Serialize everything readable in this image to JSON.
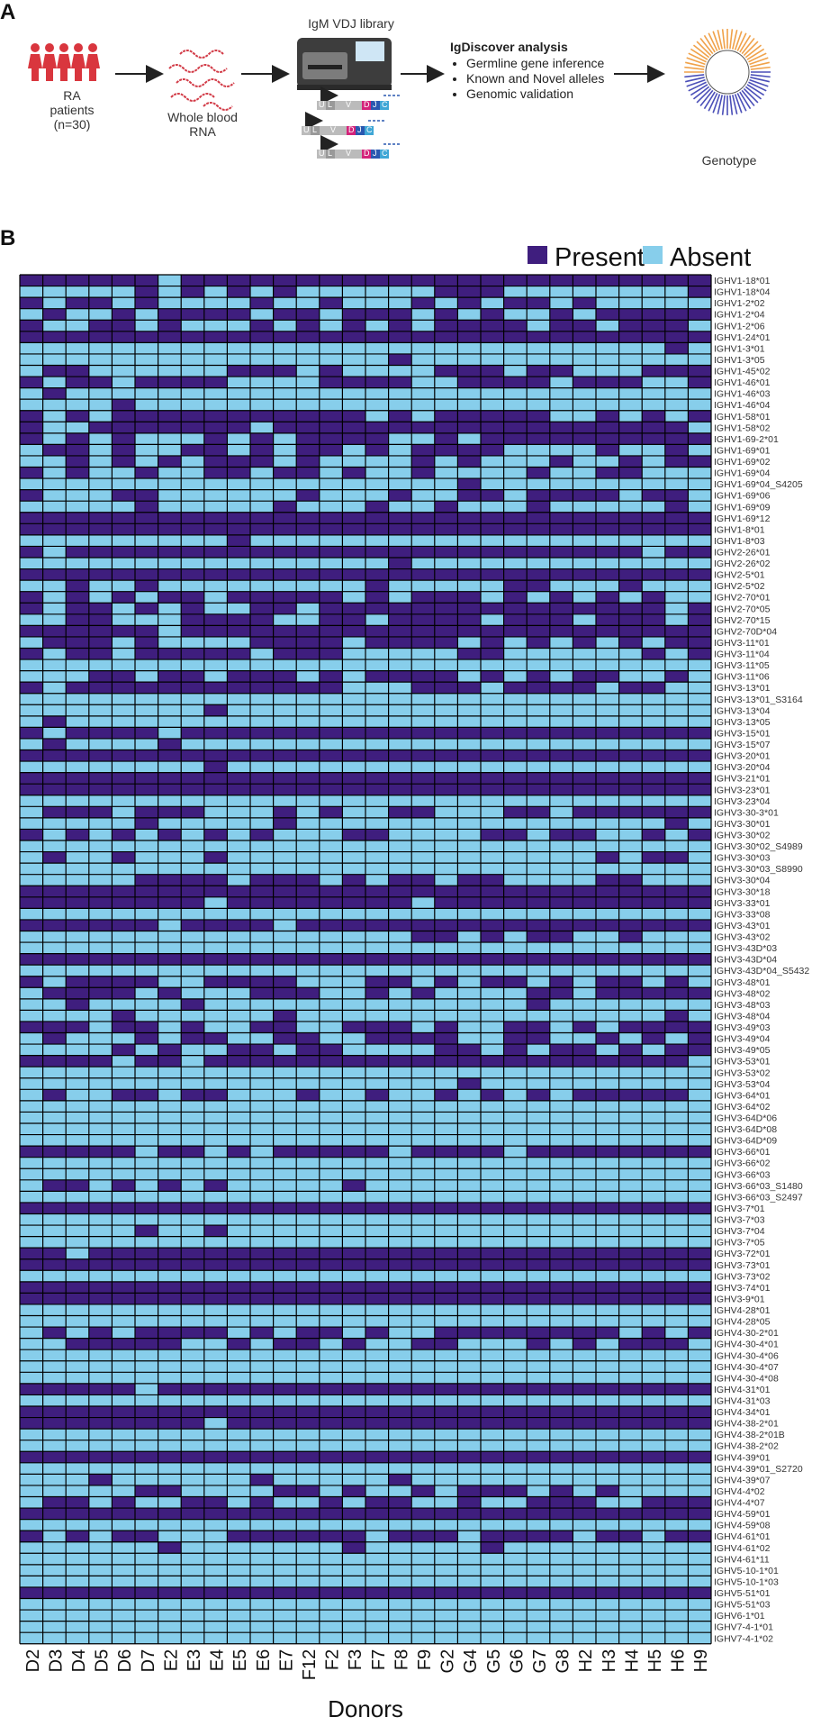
{
  "panel_a": {
    "letter": "A",
    "patients_label": "RA\npatients\n(n=30)",
    "rna_label": "Whole blood\nRNA",
    "library_label": "IgM VDJ library",
    "analysis_title": "IgDiscover analysis",
    "analysis_items": [
      "Germline gene inference",
      "Known and Novel alleles",
      "Genomic validation"
    ],
    "genotype_label": "Genotype",
    "segment_letters": [
      "U",
      "L",
      "V",
      "D",
      "J",
      "C"
    ]
  },
  "panel_b": {
    "letter": "B",
    "legend": [
      {
        "label": "Present",
        "color": "#3f1e7e"
      },
      {
        "label": "Absent",
        "color": "#87ceeb"
      }
    ],
    "x_title": "Donors"
  },
  "chart_data": {
    "type": "heatmap",
    "x_title": "Donors",
    "legend": [
      "Present",
      "Absent"
    ],
    "colors": {
      "present": "#3f1e7e",
      "absent": "#87ceeb"
    },
    "donors": [
      "D2",
      "D3",
      "D4",
      "D5",
      "D6",
      "D7",
      "E2",
      "E3",
      "E4",
      "E5",
      "E6",
      "E7",
      "F12",
      "F2",
      "F3",
      "F7",
      "F8",
      "F9",
      "G2",
      "G4",
      "G5",
      "G6",
      "G7",
      "G8",
      "H2",
      "H3",
      "H4",
      "H5",
      "H6",
      "H9"
    ],
    "alleles": [
      "IGHV1-18*01",
      "IGHV1-18*04",
      "IGHV1-2*02",
      "IGHV1-2*04",
      "IGHV1-2*06",
      "IGHV1-24*01",
      "IGHV1-3*01",
      "IGHV1-3*05",
      "IGHV1-45*02",
      "IGHV1-46*01",
      "IGHV1-46*03",
      "IGHV1-46*04",
      "IGHV1-58*01",
      "IGHV1-58*02",
      "IGHV1-69-2*01",
      "IGHV1-69*01",
      "IGHV1-69*02",
      "IGHV1-69*04",
      "IGHV1-69*04_S4205",
      "IGHV1-69*06",
      "IGHV1-69*09",
      "IGHV1-69*12",
      "IGHV1-8*01",
      "IGHV1-8*03",
      "IGHV2-26*01",
      "IGHV2-26*02",
      "IGHV2-5*01",
      "IGHV2-5*02",
      "IGHV2-70*01",
      "IGHV2-70*05",
      "IGHV2-70*15",
      "IGHV2-70D*04",
      "IGHV3-11*01",
      "IGHV3-11*04",
      "IGHV3-11*05",
      "IGHV3-11*06",
      "IGHV3-13*01",
      "IGHV3-13*01_S3164",
      "IGHV3-13*04",
      "IGHV3-13*05",
      "IGHV3-15*01",
      "IGHV3-15*07",
      "IGHV3-20*01",
      "IGHV3-20*04",
      "IGHV3-21*01",
      "IGHV3-23*01",
      "IGHV3-23*04",
      "IGHV3-30-3*01",
      "IGHV3-30*01",
      "IGHV3-30*02",
      "IGHV3-30*02_S4989",
      "IGHV3-30*03",
      "IGHV3-30*03_S8990",
      "IGHV3-30*04",
      "IGHV3-30*18",
      "IGHV3-33*01",
      "IGHV3-33*08",
      "IGHV3-43*01",
      "IGHV3-43*02",
      "IGHV3-43D*03",
      "IGHV3-43D*04",
      "IGHV3-43D*04_S5432",
      "IGHV3-48*01",
      "IGHV3-48*02",
      "IGHV3-48*03",
      "IGHV3-48*04",
      "IGHV3-49*03",
      "IGHV3-49*04",
      "IGHV3-49*05",
      "IGHV3-53*01",
      "IGHV3-53*02",
      "IGHV3-53*04",
      "IGHV3-64*01",
      "IGHV3-64*02",
      "IGHV3-64D*06",
      "IGHV3-64D*08",
      "IGHV3-64D*09",
      "IGHV3-66*01",
      "IGHV3-66*02",
      "IGHV3-66*03",
      "IGHV3-66*03_S1480",
      "IGHV3-66*03_S2497",
      "IGHV3-7*01",
      "IGHV3-7*03",
      "IGHV3-7*04",
      "IGHV3-7*05",
      "IGHV3-72*01",
      "IGHV3-73*01",
      "IGHV3-73*02",
      "IGHV3-74*01",
      "IGHV3-9*01",
      "IGHV4-28*01",
      "IGHV4-28*05",
      "IGHV4-30-2*01",
      "IGHV4-30-4*01",
      "IGHV4-30-4*06",
      "IGHV4-30-4*07",
      "IGHV4-30-4*08",
      "IGHV4-31*01",
      "IGHV4-31*03",
      "IGHV4-34*01",
      "IGHV4-38-2*01",
      "IGHV4-38-2*01B",
      "IGHV4-38-2*02",
      "IGHV4-39*01",
      "IGHV4-39*01_S2720",
      "IGHV4-39*07",
      "IGHV4-4*02",
      "IGHV4-4*07",
      "IGHV4-59*01",
      "IGHV4-59*08",
      "IGHV4-61*01",
      "IGHV4-61*02",
      "IGHV4-61*11",
      "IGHV5-10-1*01",
      "IGHV5-10-1*03",
      "IGHV5-51*01",
      "IGHV5-51*03",
      "IGHV6-1*01",
      "IGHV7-4-1*01",
      "IGHV7-4-1*02"
    ],
    "matrix": [
      "111111011111111111111111111111",
      "000001010101000000111000000001",
      "101101000010010001010110100000",
      "010010111101101110101001011111",
      "100110100010101010111101101110",
      "111111111111111111111111111111",
      "000000000000000000000000000010",
      "000000000000000010000000000000",
      "011000000111010000111011000111",
      "101101111000011110011110111001",
      "010000000000000000000000000000",
      "000010000000000000000000000000",
      "101011111111111010111110010101",
      "100111111101111111111111111110",
      "101010001010111100101111111111",
      "011010011010110101111000010010",
      "001010101110100001010001001011",
      "101001001101101001000010011000",
      "000000000000000000010000000000",
      "100011000000100010011011110110",
      "000001000001000100100010000010",
      "111111111111111111111111111111",
      "111111111111111111111111111111",
      "000000000100000000000000000000",
      "101111111111111111111111111011",
      "000000000000000010000000000000",
      "111111111111111111111111111111",
      "001001000000000100000110001000",
      "101010110111110101110101010100",
      "101101010011011111111111111101",
      "001100011110011011110111011101",
      "111111011111111111111111111111",
      "011101000011110111101010101011",
      "101101111101110000011000000101",
      "000000000000000000000000000000",
      "000110110111010111101010110010",
      "101111111111110001110111101100",
      "000000000000000000000000000000",
      "000000001000000000000000000000",
      "010000000000000000000000000000",
      "101111011111111111111111111111",
      "010000100000000000000000000000",
      "111111111111111111111111111111",
      "000000001000000000000000000000",
      "111111111111111111111111111111",
      "111111111111111111111111111111",
      "000000000000000000000000000000",
      "011101110001010011000110111111",
      "000001000001000000000000000010",
      "101010101010001100001101100101",
      "000000000000000000000000000000",
      "010010001000000000000000010110",
      "000000000000000000000000000000",
      "000001111011101011011000011000",
      "111111111111111111111111111111",
      "111111110111111110111111111111",
      "000000000000000000000000000000",
      "111111011110111111111111111111",
      "000000000000000001101011001000",
      "000000000000000000000000000000",
      "111111111111111111111111111111",
      "000000000000000000000000000000",
      "101111001111000110101101011010",
      "011110100011100101000011011111",
      "001000010000000000000010000000",
      "000010000001000000000000000010",
      "111011010011001110100110101111",
      "010001011001100111100110010101",
      "000010100110110000110101101011",
      "111101101111111111111111111110",
      "000000000000000000000000000000",
      "000000000000000000010000000000",
      "010011011000100100101010111110",
      "000000000000000000000000000000",
      "000000000000000000000000000000",
      "000000000000000000000000000000",
      "000000000000000000000000000000",
      "111110110101111101111011111111",
      "000000000000000000000000000000",
      "000000000000000000000000000000",
      "011010101000001000000000000000",
      "000000000000000000000000000000",
      "111111111111111111111111111111",
      "000000000000000000000000000000",
      "000001001000000000000000000000",
      "000000000000000000000000000000",
      "110111111111111111111111111111",
      "111111111111111111111111111111",
      "000000000000000000000000000000",
      "111111111111111111111111111111",
      "111111111111111111111111111111",
      "000000000000000000000000000000",
      "000000000000000000000000000000",
      "010101111010110100111111110101",
      "001111100101101001100010101110",
      "000000000000000000000000000000",
      "000000000000000000000000000000",
      "000000000000000000000000000000",
      "111110111111111111111111111111",
      "000000000000000000000000000000",
      "111111111111111111111111111111",
      "111111110111111111111111111111",
      "000000000000000000000000000000",
      "000000000000000000000000000000",
      "111111111111111111111111111111",
      "000000000000000000000000000000",
      "000100000010000010000000000000",
      "000001100001101001011101010000",
      "011010011010010110010011100111",
      "111111111111111111111111111111",
      "000000000000000000000000000000",
      "101011000111111011101111011011",
      "000000100000001000001000000000",
      "000000000000000000000000000000",
      "000000000000000000000000000000",
      "000000000000000000000000000000",
      "111111111111111111111111111111",
      "000000000000000000000000000000",
      "000000000000000000000000000000",
      "000000000000000000000000000000",
      "000000000000000000000000000000"
    ]
  }
}
